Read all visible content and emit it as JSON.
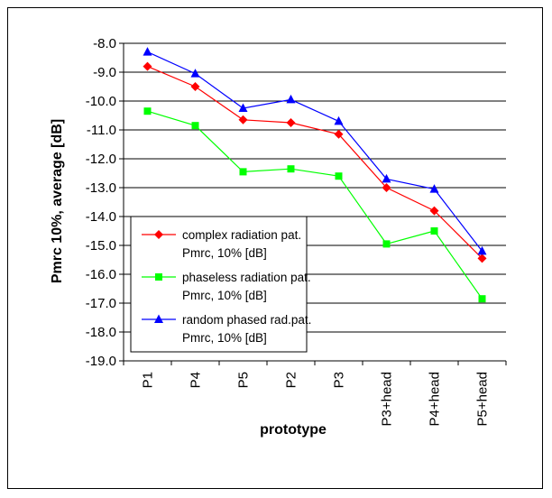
{
  "chart_data": {
    "type": "line",
    "title": "",
    "xlabel": "prototype",
    "ylabel": "Pmrc 10%, average [dB]",
    "categories": [
      "P1",
      "P4",
      "P5",
      "P2",
      "P3",
      "P3+head",
      "P4+head",
      "P5+head"
    ],
    "ylim": [
      -19.0,
      -8.0
    ],
    "yticks": [
      "-8.0",
      "-9.0",
      "-10.0",
      "-11.0",
      "-12.0",
      "-13.0",
      "-14.0",
      "-15.0",
      "-16.0",
      "-17.0",
      "-18.0",
      "-19.0"
    ],
    "grid": "horizontal",
    "legend_position": "bottom-left",
    "series": [
      {
        "name": "complex radiation pat. Pmrc, 10% [dB]",
        "legend_lines": [
          "complex radiation pat.",
          "Pmrc, 10% [dB]"
        ],
        "color": "#ff0000",
        "marker": "diamond",
        "values": [
          -8.8,
          -9.5,
          -10.65,
          -10.75,
          -11.15,
          -13.0,
          -13.8,
          -15.45
        ]
      },
      {
        "name": "phaseless radiation pat. Pmrc, 10% [dB]",
        "legend_lines": [
          "phaseless radiation pat.",
          "Pmrc, 10% [dB]"
        ],
        "color": "#00ff00",
        "marker": "square",
        "values": [
          -10.35,
          -10.85,
          -12.45,
          -12.35,
          -12.6,
          -14.95,
          -14.5,
          -16.85
        ]
      },
      {
        "name": "random phased rad.pat. Pmrc, 10% [dB]",
        "legend_lines": [
          "random phased rad.pat.",
          "Pmrc, 10% [dB]"
        ],
        "color": "#0000ff",
        "marker": "triangle",
        "values": [
          -8.3,
          -9.05,
          -10.25,
          -9.95,
          -10.7,
          -12.7,
          -13.05,
          -15.2
        ]
      }
    ]
  }
}
